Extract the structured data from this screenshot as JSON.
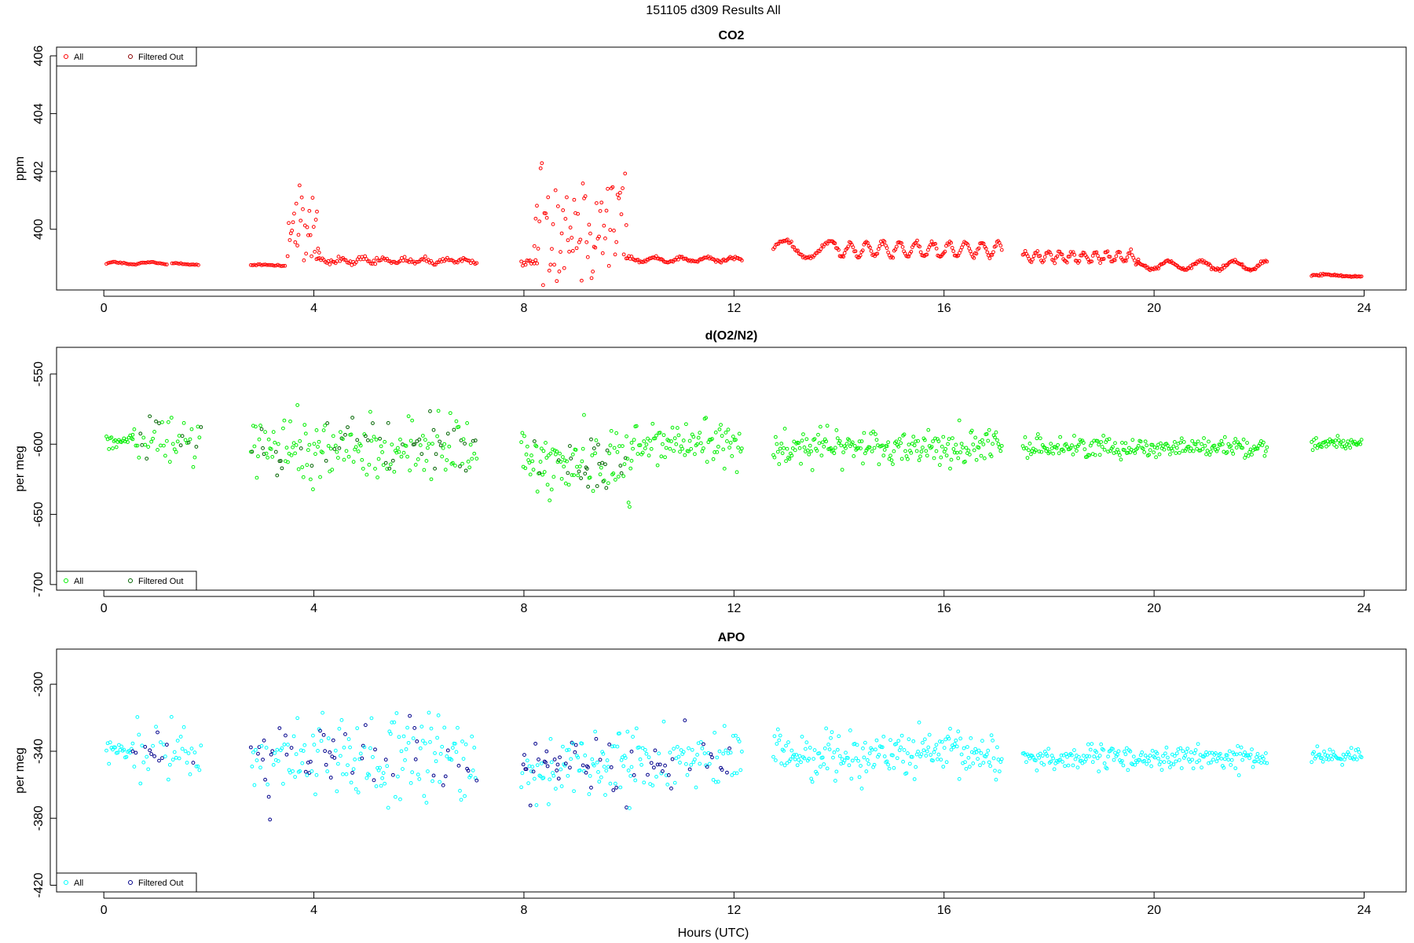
{
  "figure": {
    "title": "151105   d309   Results All",
    "xlabel": "Hours (UTC)"
  },
  "chart_data": [
    {
      "type": "scatter",
      "title": "CO2",
      "xlabel": "Hours (UTC)",
      "ylabel": "ppm",
      "xlim": [
        -0.9,
        24.8
      ],
      "ylim": [
        397.9,
        406.3
      ],
      "x_ticks": [
        "0",
        "4",
        "8",
        "12",
        "16",
        "20",
        "24"
      ],
      "y_ticks": [
        "400",
        "402",
        "404",
        "406"
      ],
      "grid": false,
      "legend": {
        "placement": "top-left",
        "entries": [
          "All",
          "Filtered Out"
        ]
      },
      "colors": {
        "all": "#ff0000",
        "filtered": "#8b0000"
      },
      "segments": [
        {
          "start": 0.05,
          "end": 1.2,
          "points": 36,
          "base": 398.82,
          "wave": [
            0.04,
            1.5,
            0
          ],
          "noise": 0.02
        },
        {
          "start": 1.3,
          "end": 1.8,
          "points": 16,
          "base": 398.8,
          "wave": [
            0.03,
            1.2,
            1
          ],
          "noise": 0.02
        },
        {
          "start": 2.8,
          "end": 3.45,
          "points": 20,
          "base": 398.75,
          "wave": [
            0.02,
            1,
            0
          ],
          "noise": 0.02
        },
        {
          "start": 3.5,
          "end": 4.1,
          "points": 30,
          "base": 400.0,
          "wave": [
            0,
            1,
            0
          ],
          "noise": 1.0
        },
        {
          "start": 4.05,
          "end": 7.1,
          "points": 110,
          "base": 398.9,
          "wave": [
            0.08,
            2.5,
            0.5
          ],
          "noise": 0.07
        },
        {
          "start": 7.95,
          "end": 8.25,
          "points": 12,
          "base": 398.85,
          "wave": [
            0,
            1,
            0
          ],
          "noise": 0.08
        },
        {
          "start": 8.2,
          "end": 9.95,
          "points": 75,
          "base": 400.3,
          "wave": [
            0,
            1,
            0
          ],
          "noise": 1.5
        },
        {
          "start": 9.95,
          "end": 12.15,
          "points": 90,
          "base": 398.95,
          "wave": [
            0.07,
            2,
            1
          ],
          "noise": 0.04
        },
        {
          "start": 12.75,
          "end": 13.9,
          "points": 48,
          "base": 399.3,
          "wave": [
            0.3,
            1.1,
            0.2
          ],
          "noise": 0.05
        },
        {
          "start": 13.9,
          "end": 17.1,
          "points": 140,
          "base": 399.3,
          "wave": [
            0.25,
            3.2,
            1.5
          ],
          "noise": 0.06
        },
        {
          "start": 17.5,
          "end": 19.7,
          "points": 95,
          "base": 399.05,
          "wave": [
            0.18,
            4.5,
            0.3
          ],
          "noise": 0.06
        },
        {
          "start": 19.7,
          "end": 22.15,
          "points": 110,
          "base": 398.75,
          "wave": [
            0.15,
            1.6,
            2.1
          ],
          "noise": 0.04
        },
        {
          "start": 23.0,
          "end": 23.95,
          "points": 40,
          "base": 398.4,
          "wave": [
            0.03,
            1,
            0
          ],
          "noise": 0.02
        }
      ]
    },
    {
      "type": "scatter",
      "title": "d(O2/N2)",
      "xlabel": "Hours (UTC)",
      "ylabel": "per meg",
      "xlim": [
        -0.9,
        24.8
      ],
      "ylim": [
        -704,
        -531
      ],
      "x_ticks": [
        "0",
        "4",
        "8",
        "12",
        "16",
        "20",
        "24"
      ],
      "y_ticks": [
        "-550",
        "-600",
        "-650",
        "-700"
      ],
      "grid": false,
      "legend": {
        "placement": "bottom-left",
        "entries": [
          "All",
          "Filtered Out"
        ]
      },
      "colors": {
        "all": "#00ee00",
        "filtered": "#006400"
      },
      "segments": [
        {
          "start": 0.05,
          "end": 0.55,
          "points": 22,
          "base": -598,
          "noise": 4
        },
        {
          "start": 0.55,
          "end": 1.85,
          "points": 45,
          "base": -597,
          "noise": 13
        },
        {
          "start": 2.8,
          "end": 7.1,
          "points": 190,
          "base": -603,
          "noise": 16
        },
        {
          "start": 7.95,
          "end": 10.05,
          "points": 110,
          "base": -613,
          "noise": 17
        },
        {
          "start": 10.05,
          "end": 12.15,
          "points": 90,
          "base": -600,
          "noise": 12
        },
        {
          "start": 12.75,
          "end": 17.1,
          "points": 200,
          "base": -602,
          "noise": 9
        },
        {
          "start": 17.5,
          "end": 22.15,
          "points": 210,
          "base": -602,
          "noise": 5
        },
        {
          "start": 23.0,
          "end": 23.95,
          "points": 45,
          "base": -599,
          "noise": 3
        }
      ]
    },
    {
      "type": "scatter",
      "title": "APO",
      "xlabel": "Hours (UTC)",
      "ylabel": "per meg",
      "xlim": [
        -0.9,
        24.8
      ],
      "ylim": [
        -424,
        -279
      ],
      "x_ticks": [
        "0",
        "4",
        "8",
        "12",
        "16",
        "20",
        "24"
      ],
      "y_ticks": [
        "-300",
        "-340",
        "-380",
        "-420"
      ],
      "grid": false,
      "legend": {
        "placement": "bottom-left",
        "entries": [
          "All",
          "Filtered Out"
        ]
      },
      "colors": {
        "all": "#00ffff",
        "filtered": "#00008b"
      },
      "segments": [
        {
          "start": 0.05,
          "end": 0.55,
          "points": 22,
          "base": -341,
          "noise": 4
        },
        {
          "start": 0.55,
          "end": 1.85,
          "points": 45,
          "base": -341,
          "noise": 13
        },
        {
          "start": 2.8,
          "end": 7.1,
          "points": 190,
          "base": -345,
          "noise": 18
        },
        {
          "start": 7.95,
          "end": 10.05,
          "points": 110,
          "base": -350,
          "noise": 16
        },
        {
          "start": 10.05,
          "end": 12.15,
          "points": 90,
          "base": -344,
          "noise": 13
        },
        {
          "start": 12.75,
          "end": 17.1,
          "points": 200,
          "base": -342,
          "noise": 10
        },
        {
          "start": 17.5,
          "end": 22.15,
          "points": 210,
          "base": -344,
          "noise": 5
        },
        {
          "start": 23.0,
          "end": 23.95,
          "points": 45,
          "base": -343,
          "noise": 3
        }
      ]
    }
  ]
}
